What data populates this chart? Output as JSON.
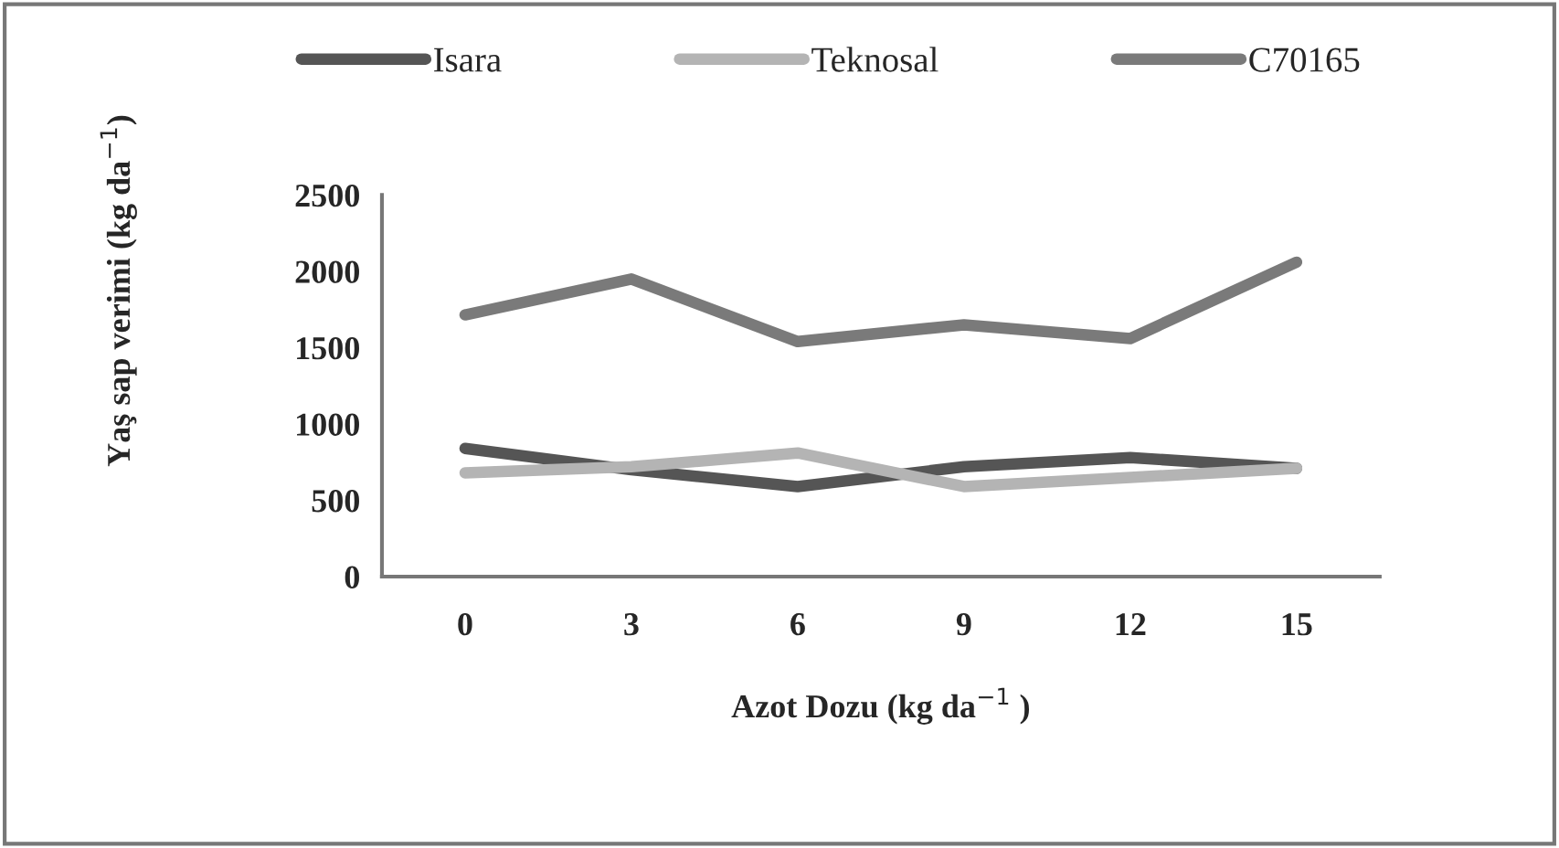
{
  "chart_data": {
    "type": "line",
    "xlabel": "Azot Dozu (kg da$^{−1}$ )",
    "ylabel": "Yaş sap verimi (kg da$^{−1}$)",
    "categories": [
      "0",
      "3",
      "6",
      "9",
      "12",
      "15"
    ],
    "series": [
      {
        "name": "Isara",
        "color": "#555555",
        "values": [
          840,
          700,
          590,
          720,
          780,
          710
        ]
      },
      {
        "name": "Teknosal",
        "color": "#b4b4b4",
        "values": [
          680,
          720,
          810,
          590,
          650,
          710
        ]
      },
      {
        "name": "C70165",
        "color": "#7a7a7a",
        "values": [
          1715,
          1950,
          1540,
          1650,
          1560,
          2060
        ]
      }
    ],
    "ylim": [
      0,
      2500
    ],
    "yticks": [
      0,
      500,
      1000,
      1500,
      2000,
      2500
    ],
    "grid": false,
    "legend": "top",
    "marker": "none",
    "line_style": "solid"
  }
}
